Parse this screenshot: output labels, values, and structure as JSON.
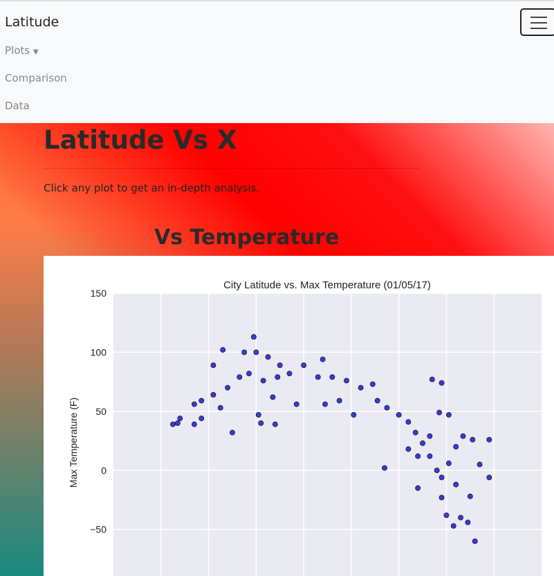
{
  "navbar": {
    "brand": "Latitude",
    "items": [
      "Plots",
      "Comparison",
      "Data"
    ]
  },
  "header": {
    "title": "Latitude Vs X",
    "subtitle": "Click any plot to get an in-depth analysis."
  },
  "section": {
    "title": "Vs Temperature"
  },
  "chart_data": {
    "type": "scatter",
    "title": "City Latitude vs. Max Temperature (01/05/17)",
    "y_label": "Max Temperature (F)",
    "x": [
      -55,
      -53,
      -52,
      -46,
      -46,
      -43,
      -38,
      -34,
      -30,
      -25,
      -21,
      -20,
      -15,
      -19,
      -18,
      -12,
      -10,
      -32,
      -27,
      -23,
      -17,
      -11,
      -6,
      0,
      6,
      12,
      18,
      24,
      29,
      31,
      35,
      40,
      44,
      47,
      50,
      53,
      54,
      58,
      57,
      34,
      48,
      56,
      58,
      61,
      64,
      60,
      63,
      66,
      69,
      70,
      72,
      71,
      74,
      78,
      78,
      64,
      67,
      53,
      44,
      21,
      15,
      9,
      -3,
      -43,
      -38,
      -13,
      8,
      -35,
      61,
      48,
      58
    ],
    "values": [
      39,
      40,
      44,
      56,
      39,
      44,
      89,
      102,
      32,
      100,
      113,
      100,
      96,
      47,
      40,
      39,
      89,
      70,
      79,
      82,
      76,
      79,
      82,
      89,
      79,
      79,
      76,
      70,
      73,
      59,
      53,
      47,
      41,
      32,
      23,
      29,
      77,
      74,
      49,
      2,
      -15,
      0,
      -6,
      6,
      -12,
      -38,
      -47,
      -40,
      -44,
      -22,
      -60,
      26,
      5,
      -6,
      26,
      20,
      29,
      12,
      18,
      47,
      59,
      56,
      56,
      59,
      64,
      62,
      94,
      53,
      47,
      12,
      -23
    ],
    "color": "#1a1ad8",
    "xlim": [
      -80,
      100
    ],
    "xgrid": [
      -60,
      -40,
      -20,
      0,
      20,
      40,
      60,
      80
    ],
    "ylim": [
      -90,
      150
    ],
    "yticks": [
      {
        "value": -50,
        "label": "−50"
      },
      0,
      50,
      100,
      150
    ],
    "grid": true
  }
}
